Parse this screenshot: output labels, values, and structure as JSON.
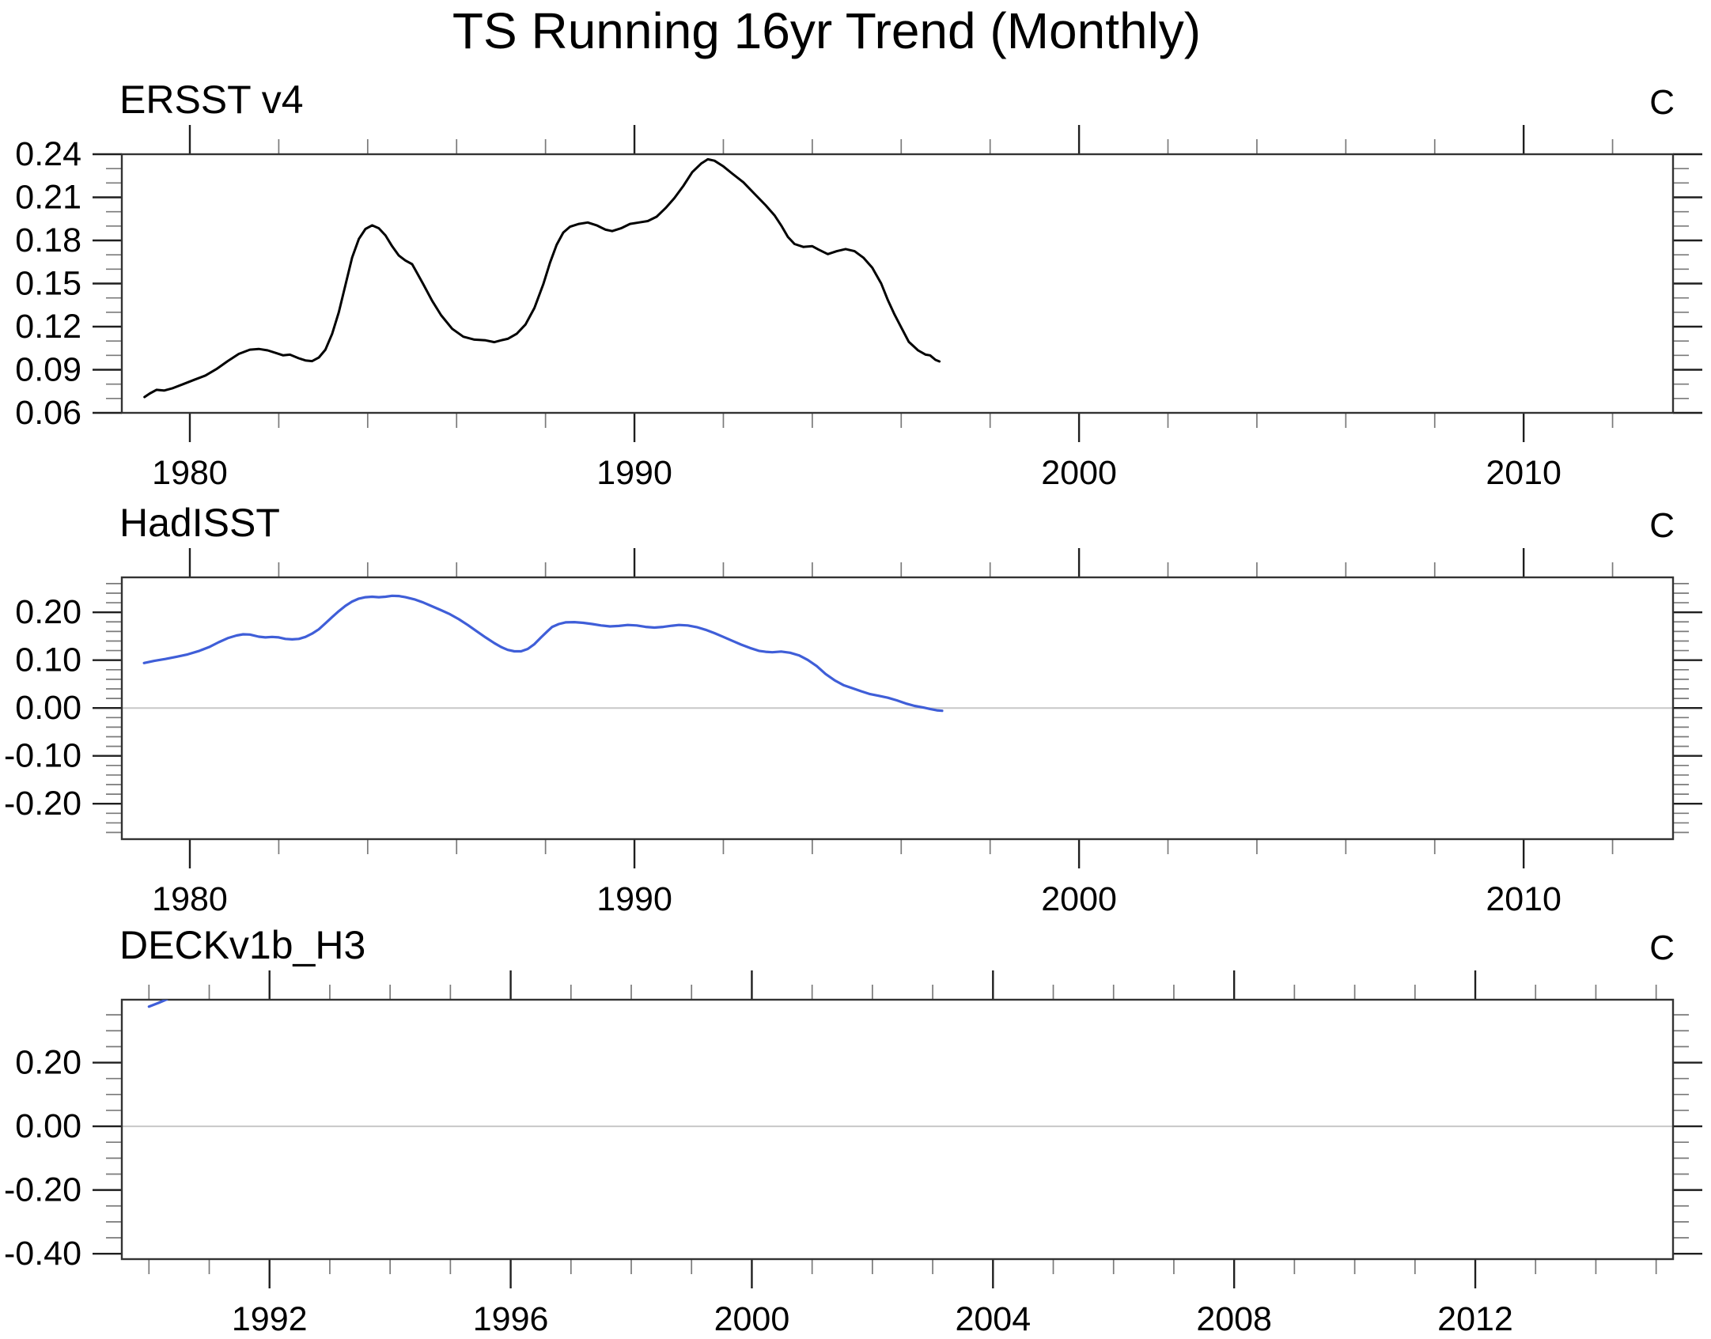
{
  "page": {
    "title": "TS Running 16yr Trend (Monthly)"
  },
  "style": {
    "frame_color": "#333333",
    "major_tick_color": "#1f1f1f",
    "minor_tick_color": "#7a7a7a",
    "zero_line_color": "#c8c8c8",
    "black_curve_color": "#000000",
    "blue_curve_color": "#3f5ed8"
  },
  "chart_data": [
    {
      "type": "line",
      "title": "ERSST v4",
      "unit_label": "C",
      "line_color": "#000000",
      "line_width": 3,
      "zero_line": false,
      "legend": "none",
      "grid": "off",
      "x_axis": {
        "range": [
          1978.47,
          2013.36
        ],
        "major_ticks": [
          {
            "v": 1980,
            "label": "1980"
          },
          {
            "v": 1990,
            "label": "1990"
          },
          {
            "v": 2000,
            "label": "2000"
          },
          {
            "v": 2010,
            "label": "2010"
          }
        ],
        "minor_ticks": [
          1982,
          1984,
          1986,
          1988,
          1992,
          1994,
          1996,
          1998,
          2002,
          2004,
          2006,
          2008,
          2012
        ]
      },
      "y_axis": {
        "range": [
          0.06,
          0.24
        ],
        "major_ticks": [
          {
            "v": 0.24,
            "label": "0.24"
          },
          {
            "v": 0.21,
            "label": "0.21"
          },
          {
            "v": 0.18,
            "label": "0.18"
          },
          {
            "v": 0.15,
            "label": "0.15"
          },
          {
            "v": 0.12,
            "label": "0.12"
          },
          {
            "v": 0.09,
            "label": "0.09"
          },
          {
            "v": 0.06,
            "label": "0.06"
          }
        ],
        "minor_ticks": [
          0.07,
          0.08,
          0.1,
          0.11,
          0.13,
          0.14,
          0.16,
          0.17,
          0.19,
          0.2,
          0.22,
          0.23
        ]
      },
      "series": [
        [
          1978.98,
          0.071
        ],
        [
          1979.1,
          0.0735
        ],
        [
          1979.25,
          0.076
        ],
        [
          1979.42,
          0.0755
        ],
        [
          1979.6,
          0.077
        ],
        [
          1979.85,
          0.08
        ],
        [
          1980.1,
          0.083
        ],
        [
          1980.35,
          0.086
        ],
        [
          1980.6,
          0.0905
        ],
        [
          1980.85,
          0.096
        ],
        [
          1981.1,
          0.101
        ],
        [
          1981.35,
          0.104
        ],
        [
          1981.55,
          0.1045
        ],
        [
          1981.75,
          0.1035
        ],
        [
          1981.95,
          0.1015
        ],
        [
          1982.1,
          0.1
        ],
        [
          1982.25,
          0.1005
        ],
        [
          1982.45,
          0.098
        ],
        [
          1982.6,
          0.0965
        ],
        [
          1982.75,
          0.096
        ],
        [
          1982.9,
          0.0985
        ],
        [
          1983.05,
          0.104
        ],
        [
          1983.2,
          0.115
        ],
        [
          1983.35,
          0.13
        ],
        [
          1983.5,
          0.149
        ],
        [
          1983.65,
          0.168
        ],
        [
          1983.8,
          0.181
        ],
        [
          1983.95,
          0.188
        ],
        [
          1984.1,
          0.1905
        ],
        [
          1984.25,
          0.1885
        ],
        [
          1984.4,
          0.1835
        ],
        [
          1984.55,
          0.176
        ],
        [
          1984.7,
          0.1695
        ],
        [
          1984.85,
          0.166
        ],
        [
          1985.0,
          0.1635
        ],
        [
          1985.1,
          0.158
        ],
        [
          1985.25,
          0.1495
        ],
        [
          1985.45,
          0.138
        ],
        [
          1985.65,
          0.128
        ],
        [
          1985.9,
          0.1185
        ],
        [
          1986.15,
          0.113
        ],
        [
          1986.4,
          0.111
        ],
        [
          1986.65,
          0.1105
        ],
        [
          1986.85,
          0.1092
        ],
        [
          1987.0,
          0.1105
        ],
        [
          1987.15,
          0.1115
        ],
        [
          1987.35,
          0.115
        ],
        [
          1987.55,
          0.1215
        ],
        [
          1987.75,
          0.133
        ],
        [
          1987.95,
          0.1495
        ],
        [
          1988.1,
          0.1645
        ],
        [
          1988.25,
          0.177
        ],
        [
          1988.4,
          0.1855
        ],
        [
          1988.55,
          0.1895
        ],
        [
          1988.75,
          0.1915
        ],
        [
          1988.95,
          0.1925
        ],
        [
          1989.15,
          0.1905
        ],
        [
          1989.35,
          0.1875
        ],
        [
          1989.5,
          0.1865
        ],
        [
          1989.7,
          0.1885
        ],
        [
          1989.9,
          0.1915
        ],
        [
          1990.1,
          0.1925
        ],
        [
          1990.3,
          0.1935
        ],
        [
          1990.5,
          0.1965
        ],
        [
          1990.7,
          0.2025
        ],
        [
          1990.9,
          0.2095
        ],
        [
          1991.1,
          0.218
        ],
        [
          1991.3,
          0.2275
        ],
        [
          1991.5,
          0.2335
        ],
        [
          1991.65,
          0.2365
        ],
        [
          1991.8,
          0.2355
        ],
        [
          1992.0,
          0.2315
        ],
        [
          1992.2,
          0.2265
        ],
        [
          1992.45,
          0.2205
        ],
        [
          1992.7,
          0.2125
        ],
        [
          1992.95,
          0.2045
        ],
        [
          1993.15,
          0.1975
        ],
        [
          1993.3,
          0.1905
        ],
        [
          1993.45,
          0.1825
        ],
        [
          1993.6,
          0.1775
        ],
        [
          1993.8,
          0.1755
        ],
        [
          1994.0,
          0.176
        ],
        [
          1994.15,
          0.1735
        ],
        [
          1994.35,
          0.1705
        ],
        [
          1994.55,
          0.1725
        ],
        [
          1994.75,
          0.174
        ],
        [
          1994.95,
          0.1725
        ],
        [
          1995.15,
          0.168
        ],
        [
          1995.35,
          0.161
        ],
        [
          1995.55,
          0.15
        ],
        [
          1995.7,
          0.1385
        ],
        [
          1995.85,
          0.1285
        ],
        [
          1996.0,
          0.1195
        ],
        [
          1996.17,
          0.1095
        ],
        [
          1996.38,
          0.1035
        ],
        [
          1996.55,
          0.1005
        ],
        [
          1996.65,
          0.1
        ],
        [
          1996.77,
          0.0969
        ],
        [
          1996.86,
          0.0958
        ]
      ]
    },
    {
      "type": "line",
      "title": "HadISST",
      "unit_label": "C",
      "line_color": "#3f5ed8",
      "line_width": 3.2,
      "zero_line": true,
      "legend": "none",
      "grid": "off",
      "x_axis": {
        "range": [
          1978.47,
          2013.36
        ],
        "major_ticks": [
          {
            "v": 1980,
            "label": "1980"
          },
          {
            "v": 1990,
            "label": "1990"
          },
          {
            "v": 2000,
            "label": "2000"
          },
          {
            "v": 2010,
            "label": "2010"
          }
        ],
        "minor_ticks": [
          1982,
          1984,
          1986,
          1988,
          1992,
          1994,
          1996,
          1998,
          2002,
          2004,
          2006,
          2008,
          2012
        ]
      },
      "y_axis": {
        "range": [
          -0.274,
          0.273
        ],
        "major_ticks": [
          {
            "v": 0.2,
            "label": "0.20"
          },
          {
            "v": 0.1,
            "label": "0.10"
          },
          {
            "v": 0.0,
            "label": "0.00"
          },
          {
            "v": -0.1,
            "label": "-0.10"
          },
          {
            "v": -0.2,
            "label": "-0.20"
          }
        ],
        "minor_ticks": [
          0.26,
          0.24,
          0.22,
          0.18,
          0.16,
          0.14,
          0.12,
          0.08,
          0.06,
          0.04,
          0.02,
          -0.02,
          -0.04,
          -0.06,
          -0.08,
          -0.12,
          -0.14,
          -0.16,
          -0.18,
          -0.22,
          -0.24,
          -0.26
        ]
      },
      "series": [
        [
          1978.97,
          0.094
        ],
        [
          1979.2,
          0.0985
        ],
        [
          1979.45,
          0.1025
        ],
        [
          1979.7,
          0.107
        ],
        [
          1979.95,
          0.112
        ],
        [
          1980.2,
          0.119
        ],
        [
          1980.45,
          0.128
        ],
        [
          1980.65,
          0.1375
        ],
        [
          1980.85,
          0.146
        ],
        [
          1981.05,
          0.1515
        ],
        [
          1981.2,
          0.154
        ],
        [
          1981.35,
          0.1535
        ],
        [
          1981.55,
          0.149
        ],
        [
          1981.7,
          0.1475
        ],
        [
          1981.85,
          0.1485
        ],
        [
          1982.0,
          0.1475
        ],
        [
          1982.15,
          0.1445
        ],
        [
          1982.3,
          0.1435
        ],
        [
          1982.45,
          0.1445
        ],
        [
          1982.6,
          0.1485
        ],
        [
          1982.75,
          0.1555
        ],
        [
          1982.9,
          0.1645
        ],
        [
          1983.05,
          0.177
        ],
        [
          1983.2,
          0.19
        ],
        [
          1983.35,
          0.2025
        ],
        [
          1983.5,
          0.2135
        ],
        [
          1983.65,
          0.2225
        ],
        [
          1983.8,
          0.2285
        ],
        [
          1983.95,
          0.2315
        ],
        [
          1984.1,
          0.2325
        ],
        [
          1984.25,
          0.2315
        ],
        [
          1984.4,
          0.2325
        ],
        [
          1984.55,
          0.2345
        ],
        [
          1984.7,
          0.234
        ],
        [
          1984.85,
          0.2315
        ],
        [
          1985.05,
          0.227
        ],
        [
          1985.25,
          0.2205
        ],
        [
          1985.45,
          0.2125
        ],
        [
          1985.65,
          0.2045
        ],
        [
          1985.85,
          0.196
        ],
        [
          1986.05,
          0.1855
        ],
        [
          1986.25,
          0.1735
        ],
        [
          1986.45,
          0.1605
        ],
        [
          1986.65,
          0.1475
        ],
        [
          1986.85,
          0.1355
        ],
        [
          1987.0,
          0.1275
        ],
        [
          1987.15,
          0.1215
        ],
        [
          1987.3,
          0.1185
        ],
        [
          1987.45,
          0.1185
        ],
        [
          1987.6,
          0.1235
        ],
        [
          1987.75,
          0.1335
        ],
        [
          1987.9,
          0.1475
        ],
        [
          1988.05,
          0.161
        ],
        [
          1988.15,
          0.1695
        ],
        [
          1988.3,
          0.1755
        ],
        [
          1988.45,
          0.179
        ],
        [
          1988.65,
          0.1795
        ],
        [
          1988.85,
          0.178
        ],
        [
          1989.05,
          0.1755
        ],
        [
          1989.25,
          0.1725
        ],
        [
          1989.45,
          0.1705
        ],
        [
          1989.65,
          0.1715
        ],
        [
          1989.85,
          0.1735
        ],
        [
          1990.05,
          0.1725
        ],
        [
          1990.25,
          0.1695
        ],
        [
          1990.45,
          0.168
        ],
        [
          1990.65,
          0.1695
        ],
        [
          1990.85,
          0.172
        ],
        [
          1991.0,
          0.1735
        ],
        [
          1991.2,
          0.1725
        ],
        [
          1991.4,
          0.169
        ],
        [
          1991.6,
          0.1635
        ],
        [
          1991.8,
          0.1565
        ],
        [
          1992.0,
          0.1485
        ],
        [
          1992.2,
          0.1405
        ],
        [
          1992.4,
          0.1325
        ],
        [
          1992.6,
          0.1255
        ],
        [
          1992.8,
          0.1195
        ],
        [
          1992.95,
          0.1175
        ],
        [
          1993.1,
          0.1165
        ],
        [
          1993.3,
          0.118
        ],
        [
          1993.5,
          0.1155
        ],
        [
          1993.7,
          0.11
        ],
        [
          1993.9,
          0.1005
        ],
        [
          1994.1,
          0.0875
        ],
        [
          1994.3,
          0.071
        ],
        [
          1994.5,
          0.058
        ],
        [
          1994.7,
          0.048
        ],
        [
          1994.9,
          0.0415
        ],
        [
          1995.1,
          0.035
        ],
        [
          1995.3,
          0.029
        ],
        [
          1995.5,
          0.0255
        ],
        [
          1995.7,
          0.0215
        ],
        [
          1995.9,
          0.016
        ],
        [
          1996.1,
          0.0095
        ],
        [
          1996.3,
          0.0045
        ],
        [
          1996.5,
          0.001
        ],
        [
          1996.65,
          -0.002
        ],
        [
          1996.8,
          -0.0048
        ],
        [
          1996.92,
          -0.0058
        ]
      ]
    },
    {
      "type": "line",
      "title": "DECKv1b_H3",
      "unit_label": "C",
      "line_color": "#3f5ed8",
      "line_width": 3.2,
      "zero_line": true,
      "legend": "none",
      "grid": "off",
      "x_axis": {
        "range": [
          1989.55,
          2015.28
        ],
        "major_ticks": [
          {
            "v": 1992,
            "label": "1992"
          },
          {
            "v": 1996,
            "label": "1996"
          },
          {
            "v": 2000,
            "label": "2000"
          },
          {
            "v": 2004,
            "label": "2004"
          },
          {
            "v": 2008,
            "label": "2008"
          },
          {
            "v": 2012,
            "label": "2012"
          }
        ],
        "minor_ticks": [
          1990,
          1991,
          1993,
          1994,
          1995,
          1997,
          1998,
          1999,
          2001,
          2002,
          2003,
          2005,
          2006,
          2007,
          2009,
          2010,
          2011,
          2013,
          2014,
          2015
        ]
      },
      "y_axis": {
        "range": [
          -0.417,
          0.3975
        ],
        "major_ticks": [
          {
            "v": 0.2,
            "label": "0.20"
          },
          {
            "v": 0.0,
            "label": "0.00"
          },
          {
            "v": -0.2,
            "label": "-0.20"
          },
          {
            "v": -0.4,
            "label": "-0.40"
          }
        ],
        "minor_ticks": [
          0.35,
          0.3,
          0.25,
          0.15,
          0.1,
          0.05,
          -0.05,
          -0.1,
          -0.15,
          -0.25,
          -0.3,
          -0.35
        ]
      },
      "series": [
        [
          1990.0,
          0.376
        ],
        [
          1990.08,
          0.3815
        ],
        [
          1990.16,
          0.3875
        ],
        [
          1990.24,
          0.394
        ],
        [
          1990.3,
          0.399
        ]
      ]
    }
  ]
}
